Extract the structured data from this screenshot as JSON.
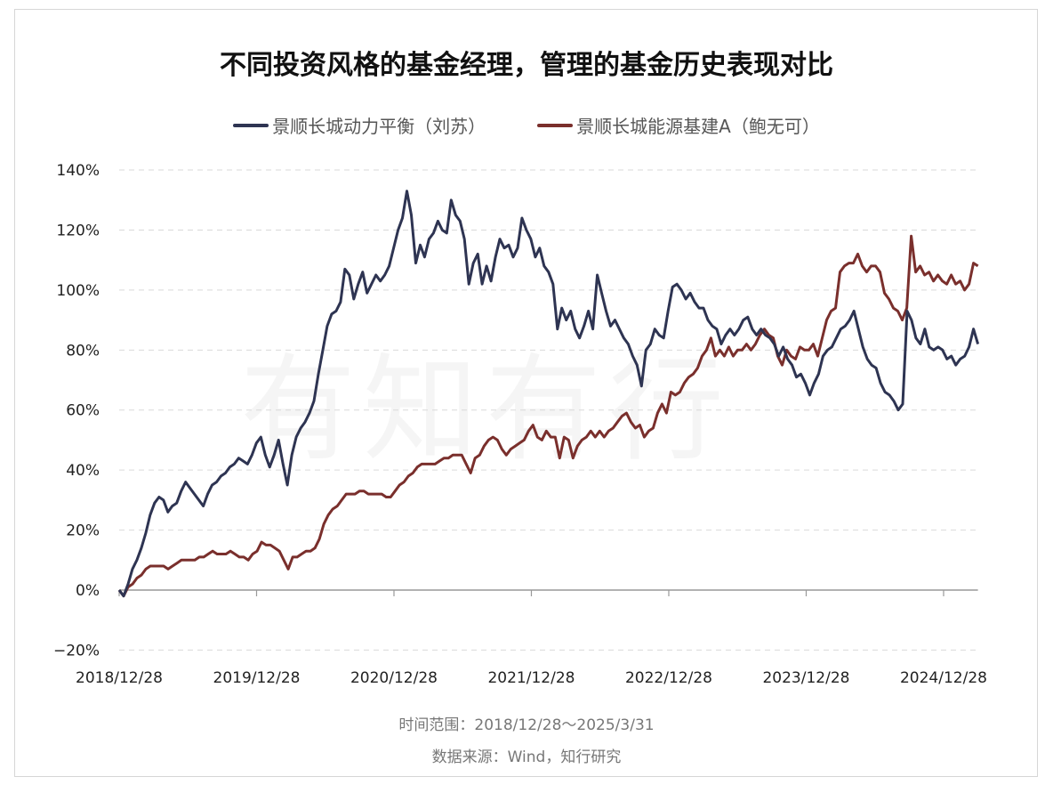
{
  "chart_data": {
    "type": "line",
    "title": "不同投资风格的基金经理，管理的基金历史表现对比",
    "xlabel": "",
    "ylabel": "",
    "x_start": "2018/12/28",
    "x_end": "2025/3/31",
    "x_spacing": "evenly spaced samples between x_start and x_end",
    "ylim": [
      -20,
      140
    ],
    "yticks": [
      -20,
      0,
      20,
      40,
      60,
      80,
      100,
      120,
      140
    ],
    "ytick_labels": [
      "−20%",
      "0%",
      "20%",
      "40%",
      "60%",
      "80%",
      "100%",
      "120%",
      "140%"
    ],
    "xtick_labels": [
      "2018/12/28",
      "2019/12/28",
      "2020/12/28",
      "2021/12/28",
      "2022/12/28",
      "2023/12/28",
      "2024/12/28"
    ],
    "xtick_years": [
      0,
      1,
      2,
      3,
      4,
      5,
      6
    ],
    "total_years": 6.25,
    "grid": "horizontal dashed",
    "legend_position": "top-center",
    "series": [
      {
        "name": "景顺长城动力平衡（刘苏）",
        "color": "#2e3452",
        "values": [
          0,
          -2,
          2,
          7,
          10,
          14,
          19,
          25,
          29,
          31,
          30,
          26,
          28,
          29,
          33,
          36,
          34,
          32,
          30,
          28,
          32,
          35,
          36,
          38,
          39,
          41,
          42,
          44,
          43,
          42,
          45,
          49,
          51,
          45,
          41,
          45,
          50,
          42,
          35,
          45,
          51,
          54,
          56,
          59,
          63,
          72,
          80,
          88,
          92,
          93,
          96,
          107,
          105,
          97,
          102,
          106,
          99,
          102,
          105,
          103,
          105,
          108,
          114,
          120,
          124,
          133,
          125,
          109,
          115,
          111,
          117,
          119,
          123,
          120,
          119,
          130,
          125,
          123,
          117,
          102,
          109,
          112,
          102,
          108,
          103,
          111,
          117,
          114,
          115,
          111,
          114,
          124,
          120,
          117,
          111,
          114,
          108,
          106,
          102,
          87,
          94,
          90,
          93,
          87,
          84,
          88,
          93,
          87,
          105,
          99,
          93,
          88,
          90,
          87,
          84,
          82,
          78,
          75,
          68,
          80,
          82,
          87,
          85,
          84,
          93,
          101,
          102,
          100,
          97,
          99,
          96,
          94,
          94,
          90,
          88,
          87,
          82,
          85,
          87,
          85,
          87,
          90,
          91,
          87,
          85,
          87,
          85,
          84,
          82,
          78,
          81,
          77,
          75,
          71,
          72,
          69,
          65,
          69,
          72,
          78,
          80,
          81,
          84,
          87,
          88,
          90,
          93,
          87,
          81,
          77,
          75,
          74,
          69,
          66,
          65,
          63,
          60,
          62,
          93,
          90,
          84,
          82,
          87,
          81,
          80,
          81,
          80,
          77,
          78,
          75,
          77,
          78,
          81,
          87,
          82
        ]
      },
      {
        "name": "景顺长城能源基建A（鲍无可）",
        "color": "#7a2f2c",
        "values": [
          0,
          -2,
          1,
          2,
          4,
          5,
          7,
          8,
          8,
          8,
          8,
          7,
          8,
          9,
          10,
          10,
          10,
          10,
          11,
          11,
          12,
          13,
          12,
          12,
          12,
          13,
          12,
          11,
          11,
          10,
          12,
          13,
          16,
          15,
          15,
          14,
          13,
          10,
          7,
          11,
          11,
          12,
          13,
          13,
          14,
          17,
          22,
          25,
          27,
          28,
          30,
          32,
          32,
          32,
          33,
          33,
          32,
          32,
          32,
          32,
          31,
          31,
          33,
          35,
          36,
          38,
          39,
          41,
          42,
          42,
          42,
          42,
          43,
          44,
          44,
          45,
          45,
          45,
          42,
          39,
          44,
          45,
          48,
          50,
          51,
          50,
          47,
          45,
          47,
          48,
          49,
          50,
          53,
          55,
          51,
          50,
          53,
          51,
          51,
          44,
          51,
          50,
          44,
          48,
          50,
          51,
          53,
          51,
          53,
          51,
          53,
          54,
          56,
          58,
          59,
          56,
          54,
          55,
          51,
          53,
          54,
          59,
          62,
          59,
          66,
          65,
          66,
          69,
          71,
          72,
          74,
          78,
          80,
          84,
          78,
          80,
          78,
          81,
          78,
          80,
          80,
          82,
          80,
          82,
          85,
          87,
          85,
          84,
          78,
          75,
          80,
          78,
          77,
          81,
          80,
          80,
          82,
          78,
          84,
          90,
          93,
          94,
          106,
          108,
          109,
          109,
          112,
          108,
          106,
          108,
          108,
          106,
          99,
          97,
          94,
          93,
          90,
          94,
          118,
          106,
          108,
          105,
          106,
          103,
          105,
          103,
          102,
          105,
          102,
          103,
          100,
          102,
          109,
          108
        ]
      }
    ]
  },
  "watermark": "有知有行",
  "footer": {
    "time_range": "时间范围：2018/12/28～2025/3/31",
    "source": "数据来源：Wind，知行研究"
  }
}
